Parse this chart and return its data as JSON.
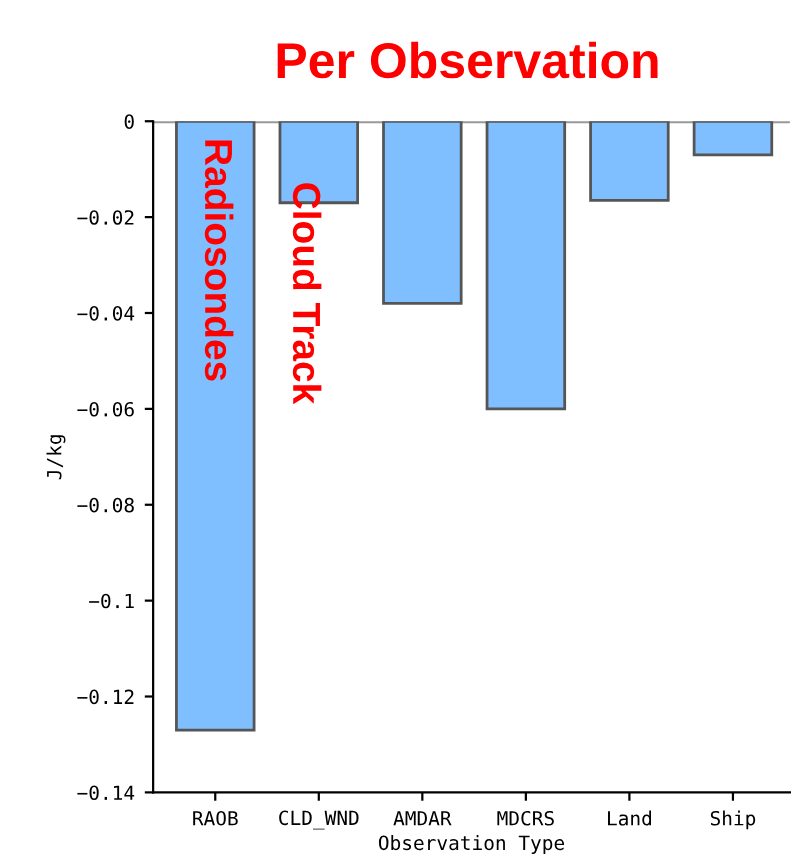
{
  "chart_data": {
    "type": "bar",
    "title": "Per Observation",
    "xlabel": "Observation Type",
    "ylabel": "J/kg",
    "categories": [
      "RAOB",
      "CLD_WND",
      "AMDAR",
      "MDCRS",
      "Land",
      "Ship"
    ],
    "values": [
      -0.127,
      -0.017,
      -0.038,
      -0.06,
      -0.0165,
      -0.007
    ],
    "color": "#80bfff",
    "ylim": [
      -0.14,
      0
    ],
    "yticks": [
      0,
      {
        "value": -0.02,
        "label": "−0.02"
      },
      {
        "value": -0.04,
        "label": "−0.04"
      },
      {
        "value": -0.06,
        "label": "−0.06"
      },
      {
        "value": -0.08,
        "label": "−0.08"
      },
      {
        "value": -0.1,
        "label": "−0.1"
      },
      {
        "value": -0.12,
        "label": "−0.12"
      },
      {
        "value": -0.14,
        "label": "−0.14"
      }
    ],
    "grid": false,
    "annotations": [
      "Radiosondes",
      "Cloud Track"
    ]
  }
}
